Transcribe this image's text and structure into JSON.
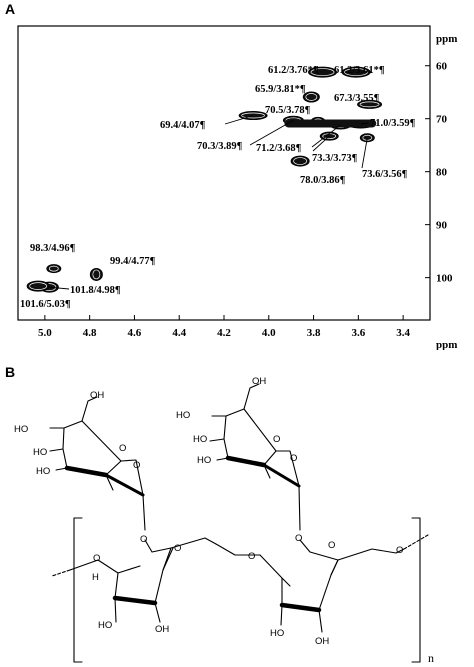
{
  "panels": {
    "a_label": "A",
    "b_label": "B"
  },
  "chart_data": {
    "type": "scatter",
    "title": "",
    "x_unit": "ppm",
    "y_unit": "ppm",
    "xlim": [
      5.12,
      3.28
    ],
    "ylim": [
      52.5,
      108
    ],
    "x_ticks": [
      5.0,
      4.8,
      4.6,
      4.4,
      4.2,
      4.0,
      3.8,
      3.6,
      3.4
    ],
    "x_tick_labels": [
      "5.0",
      "4.8",
      "4.6",
      "4.4",
      "4.2",
      "4.0",
      "3.8",
      "3.6",
      "3.4"
    ],
    "y_ticks": [
      60,
      70,
      80,
      90,
      100
    ],
    "y_tick_labels": [
      "60",
      "70",
      "80",
      "90",
      "100"
    ],
    "grid": false,
    "points": [
      {
        "x": 3.76,
        "y": 61.2,
        "label": "61.2/3.76*¶"
      },
      {
        "x": 3.61,
        "y": 61.2,
        "label": "61.2/3.61*¶"
      },
      {
        "x": 3.81,
        "y": 65.9,
        "label": "65.9/3.81*¶"
      },
      {
        "x": 3.55,
        "y": 67.3,
        "label": "67.3/3.55¶"
      },
      {
        "x": 3.78,
        "y": 70.5,
        "label": "70.5/3.78¶"
      },
      {
        "x": 4.07,
        "y": 69.4,
        "label": "69.4/4.07¶"
      },
      {
        "x": 3.59,
        "y": 71.0,
        "label": "71.0/3.59¶"
      },
      {
        "x": 3.89,
        "y": 70.3,
        "label": "70.3/3.89¶"
      },
      {
        "x": 3.68,
        "y": 71.2,
        "label": "71.2/3.68¶"
      },
      {
        "x": 3.73,
        "y": 73.3,
        "label": "73.3/3.73¶"
      },
      {
        "x": 3.56,
        "y": 73.6,
        "label": "73.6/3.56¶"
      },
      {
        "x": 3.86,
        "y": 78.0,
        "label": "78.0/3.86¶"
      },
      {
        "x": 4.96,
        "y": 98.3,
        "label": "98.3/4.96¶"
      },
      {
        "x": 4.77,
        "y": 99.4,
        "label": "99.4/4.77¶"
      },
      {
        "x": 4.98,
        "y": 101.8,
        "label": "101.8/4.98¶"
      },
      {
        "x": 5.03,
        "y": 101.6,
        "label": "101.6/5.03¶"
      }
    ]
  },
  "structure": {
    "atoms": {
      "ho": "HO",
      "oh": "OH",
      "o": "O",
      "h": "H"
    },
    "repeat_label": "n"
  }
}
